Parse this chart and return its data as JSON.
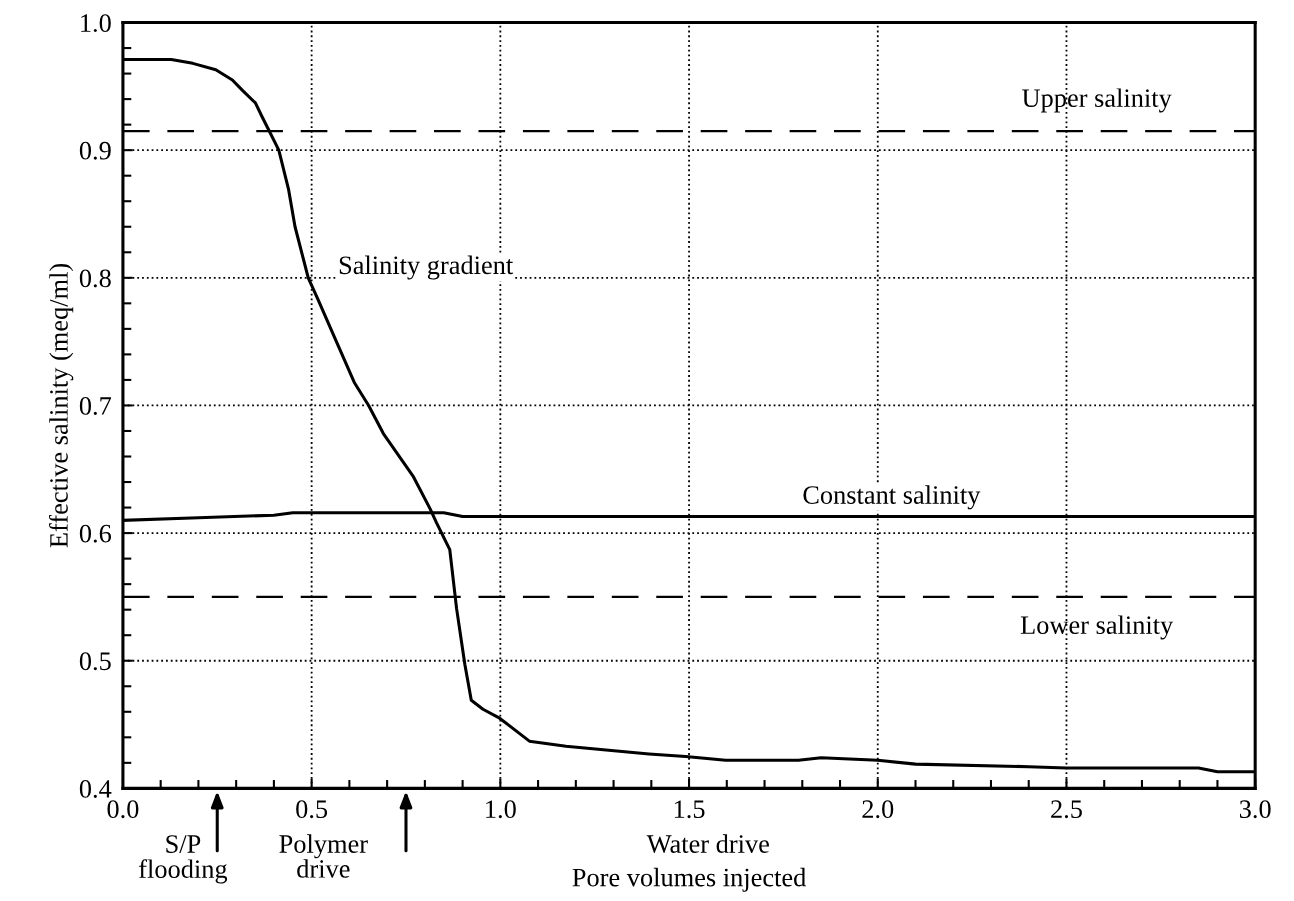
{
  "chart_data": {
    "type": "line",
    "xlabel": "Pore volumes injected",
    "ylabel": "Effective salinity (meq/ml)",
    "xlim": [
      0.0,
      3.0
    ],
    "ylim": [
      0.4,
      1.0
    ],
    "xticks": [
      {
        "value": 0,
        "label": "0.0"
      },
      0.5,
      {
        "value": 1,
        "label": "1.0"
      },
      1.5,
      {
        "value": 2,
        "label": "2.0"
      },
      2.5,
      {
        "value": 3,
        "label": "3.0"
      }
    ],
    "yticks": [
      0.4,
      0.5,
      0.6,
      0.7,
      0.8,
      0.9,
      {
        "value": 1,
        "label": "1.0"
      }
    ],
    "grid": true,
    "line_style": "solid",
    "marker": "none",
    "series": [
      {
        "name": "Salinity gradient",
        "color": "#000000",
        "x": [
          0.0,
          0.128,
          0.185,
          0.246,
          0.29,
          0.316,
          0.351,
          0.369,
          0.386,
          0.413,
          0.439,
          0.456,
          0.491,
          0.517,
          0.57,
          0.613,
          0.651,
          0.69,
          0.77,
          0.814,
          0.831,
          0.866,
          0.884,
          0.906,
          0.923,
          0.954,
          0.998,
          1.077,
          1.174,
          1.28,
          1.394,
          1.491,
          1.597,
          1.79,
          1.85,
          2.0,
          2.1,
          2.4,
          2.5,
          2.85,
          2.9,
          3.0
        ],
        "values": [
          0.971,
          0.971,
          0.968,
          0.963,
          0.955,
          0.947,
          0.937,
          0.926,
          0.916,
          0.9,
          0.869,
          0.84,
          0.8,
          0.783,
          0.747,
          0.718,
          0.7,
          0.678,
          0.644,
          0.619,
          0.608,
          0.587,
          0.541,
          0.497,
          0.469,
          0.462,
          0.455,
          0.437,
          0.433,
          0.43,
          0.427,
          0.425,
          0.422,
          0.422,
          0.424,
          0.422,
          0.419,
          0.417,
          0.416,
          0.416,
          0.413,
          0.413
        ]
      },
      {
        "name": "Constant salinity",
        "color": "#000000",
        "x": [
          0.0,
          0.2,
          0.4,
          0.45,
          0.85,
          0.9,
          3.0
        ],
        "values": [
          0.61,
          0.612,
          0.614,
          0.616,
          0.616,
          0.613,
          0.613
        ]
      }
    ],
    "ref_lines": [
      {
        "axis": "y",
        "value": 0.915,
        "label": "Upper salinity",
        "line_style": "dashed",
        "color": "#000000"
      },
      {
        "axis": "y",
        "value": 0.55,
        "label": "Lower salinity",
        "line_style": "dashed",
        "color": "#000000"
      }
    ],
    "annotations": [
      "S/P\nflooding",
      "Polymer\ndrive",
      "Water drive"
    ]
  }
}
